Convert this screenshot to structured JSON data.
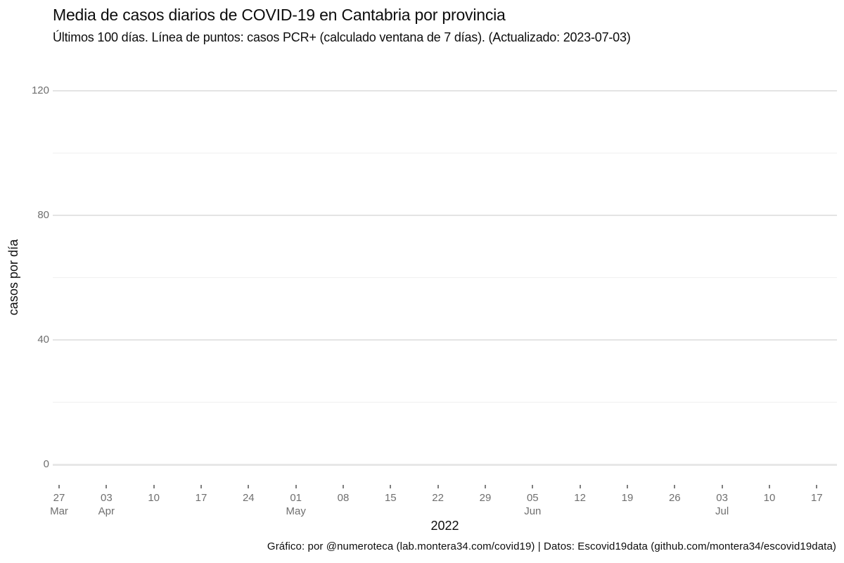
{
  "header": {
    "title": "Media de casos diarios de COVID-19 en Cantabria por provincia",
    "subtitle": "Últimos 100 días. Línea de puntos: casos PCR+ (calculado ventana de 7 días). (Actualizado: 2023-07-03)"
  },
  "footer": {
    "caption": "Gráfico: por @numeroteca (lab.montera34.com/covid19) | Datos: Escovid19data (github.com/montera34/escovid19data)"
  },
  "chart_data": {
    "type": "line",
    "title": "Media de casos diarios de COVID-19 en Cantabria por provincia",
    "subtitle": "Últimos 100 días. Línea de puntos: casos PCR+ (calculado ventana de 7 días). (Actualizado: 2023-07-03)",
    "xlabel": "2022",
    "ylabel": "casos por día",
    "ylim": [
      0,
      120
    ],
    "yticks": [
      0,
      40,
      80,
      120
    ],
    "y_minor_gridlines": [
      20,
      60,
      100
    ],
    "x_ticks": [
      {
        "day": "27",
        "month": "Mar"
      },
      {
        "day": "03",
        "month": "Apr"
      },
      {
        "day": "10"
      },
      {
        "day": "17"
      },
      {
        "day": "24"
      },
      {
        "day": "01",
        "month": "May"
      },
      {
        "day": "08"
      },
      {
        "day": "15"
      },
      {
        "day": "22"
      },
      {
        "day": "29"
      },
      {
        "day": "05",
        "month": "Jun"
      },
      {
        "day": "12"
      },
      {
        "day": "19"
      },
      {
        "day": "26"
      },
      {
        "day": "03",
        "month": "Jul"
      },
      {
        "day": "10"
      },
      {
        "day": "17"
      }
    ],
    "series": [],
    "plot_empty": true,
    "grid": "horizontal gridlines only, no legend",
    "colors": {
      "background": "#ffffff",
      "grid_major": "#e4e4e4",
      "grid_minor": "#f0f0f0",
      "axis_zero_line": "#e7e7e7",
      "tick_label": "#6f6f6f",
      "tick_mark": "#7f7f7f",
      "text": "#0d0d0d"
    }
  }
}
